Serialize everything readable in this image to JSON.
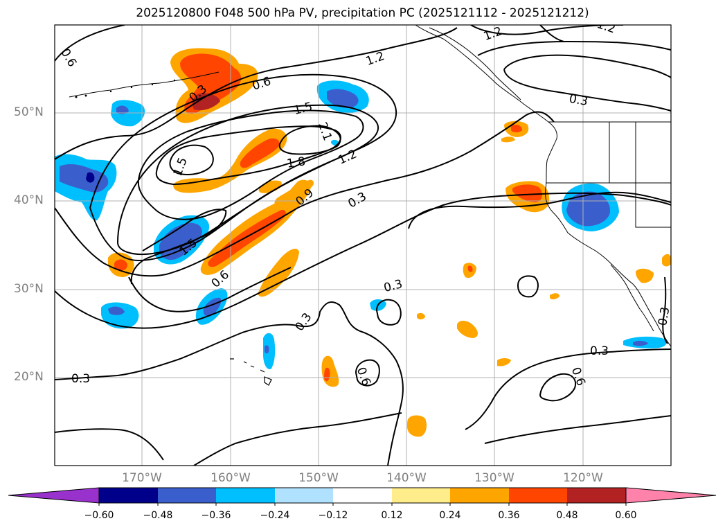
{
  "title": "2025120800 F048 500 hPa PV, precipitation PC (2025121112 - 2025121212)",
  "lat_labels": [
    "50°N",
    "40°N",
    "30°N",
    "20°N"
  ],
  "lon_labels": [
    "170°W",
    "160°W",
    "150°W",
    "140°W",
    "130°W",
    "120°W"
  ],
  "colorbar": {
    "ticks": [
      "−0.60",
      "−0.48",
      "−0.36",
      "−0.24",
      "−0.12",
      "0.12",
      "0.24",
      "0.36",
      "0.48",
      "0.60"
    ],
    "colors": [
      "#9932cc",
      "#00008b",
      "#3a5fcd",
      "#00bfff",
      "#b0e2ff",
      "#ffffff",
      "#ffec8b",
      "#ffa500",
      "#ff4500",
      "#b22222",
      "#ff82ab"
    ]
  },
  "contour_labels": [
    "0.6",
    "0.3",
    "0.6",
    "1.2",
    "1.2",
    "1.2",
    "1.5",
    "2.1",
    "1.5",
    "1.8",
    "1.2",
    "0.9",
    "0.3",
    "1.5",
    "0.6",
    "0.3",
    "0.3",
    "0.3",
    "0.3",
    "0.6",
    "0.3",
    "0.6",
    "0.3"
  ],
  "colors": {
    "frame": "#000000",
    "grid": "#b0b0b0",
    "axis_text": "#808080"
  }
}
